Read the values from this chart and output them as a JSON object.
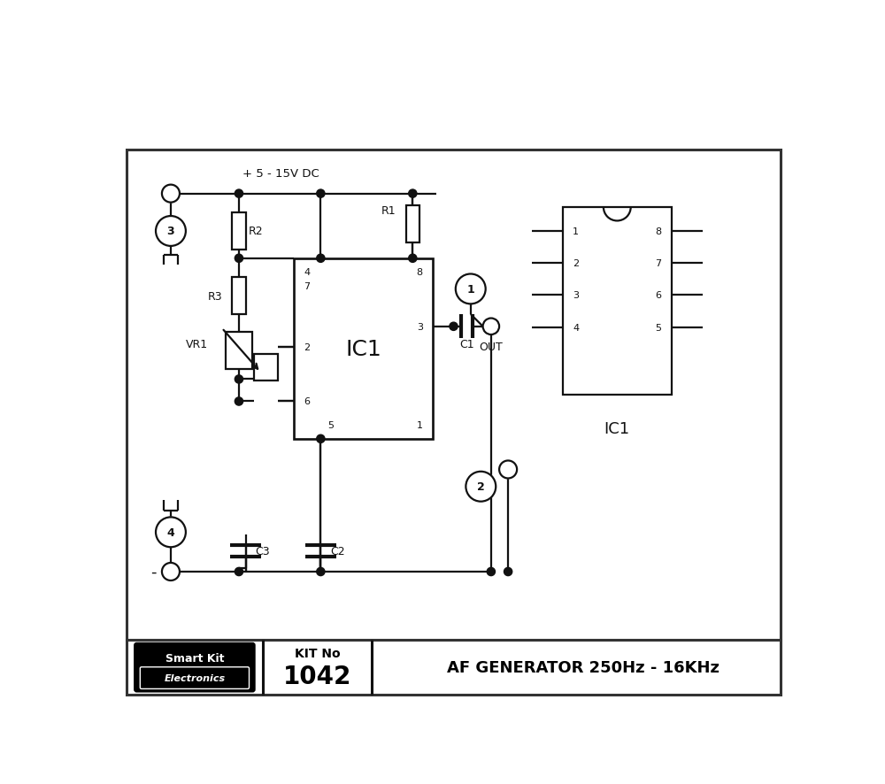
{
  "title": "AF GENERATOR 250Hz - 16KHz",
  "kit_no": "1042",
  "vcc_label": "+ 5 - 15V DC",
  "ic1_label": "IC1",
  "lc": "#111111",
  "lw": 1.6,
  "bg": "white"
}
